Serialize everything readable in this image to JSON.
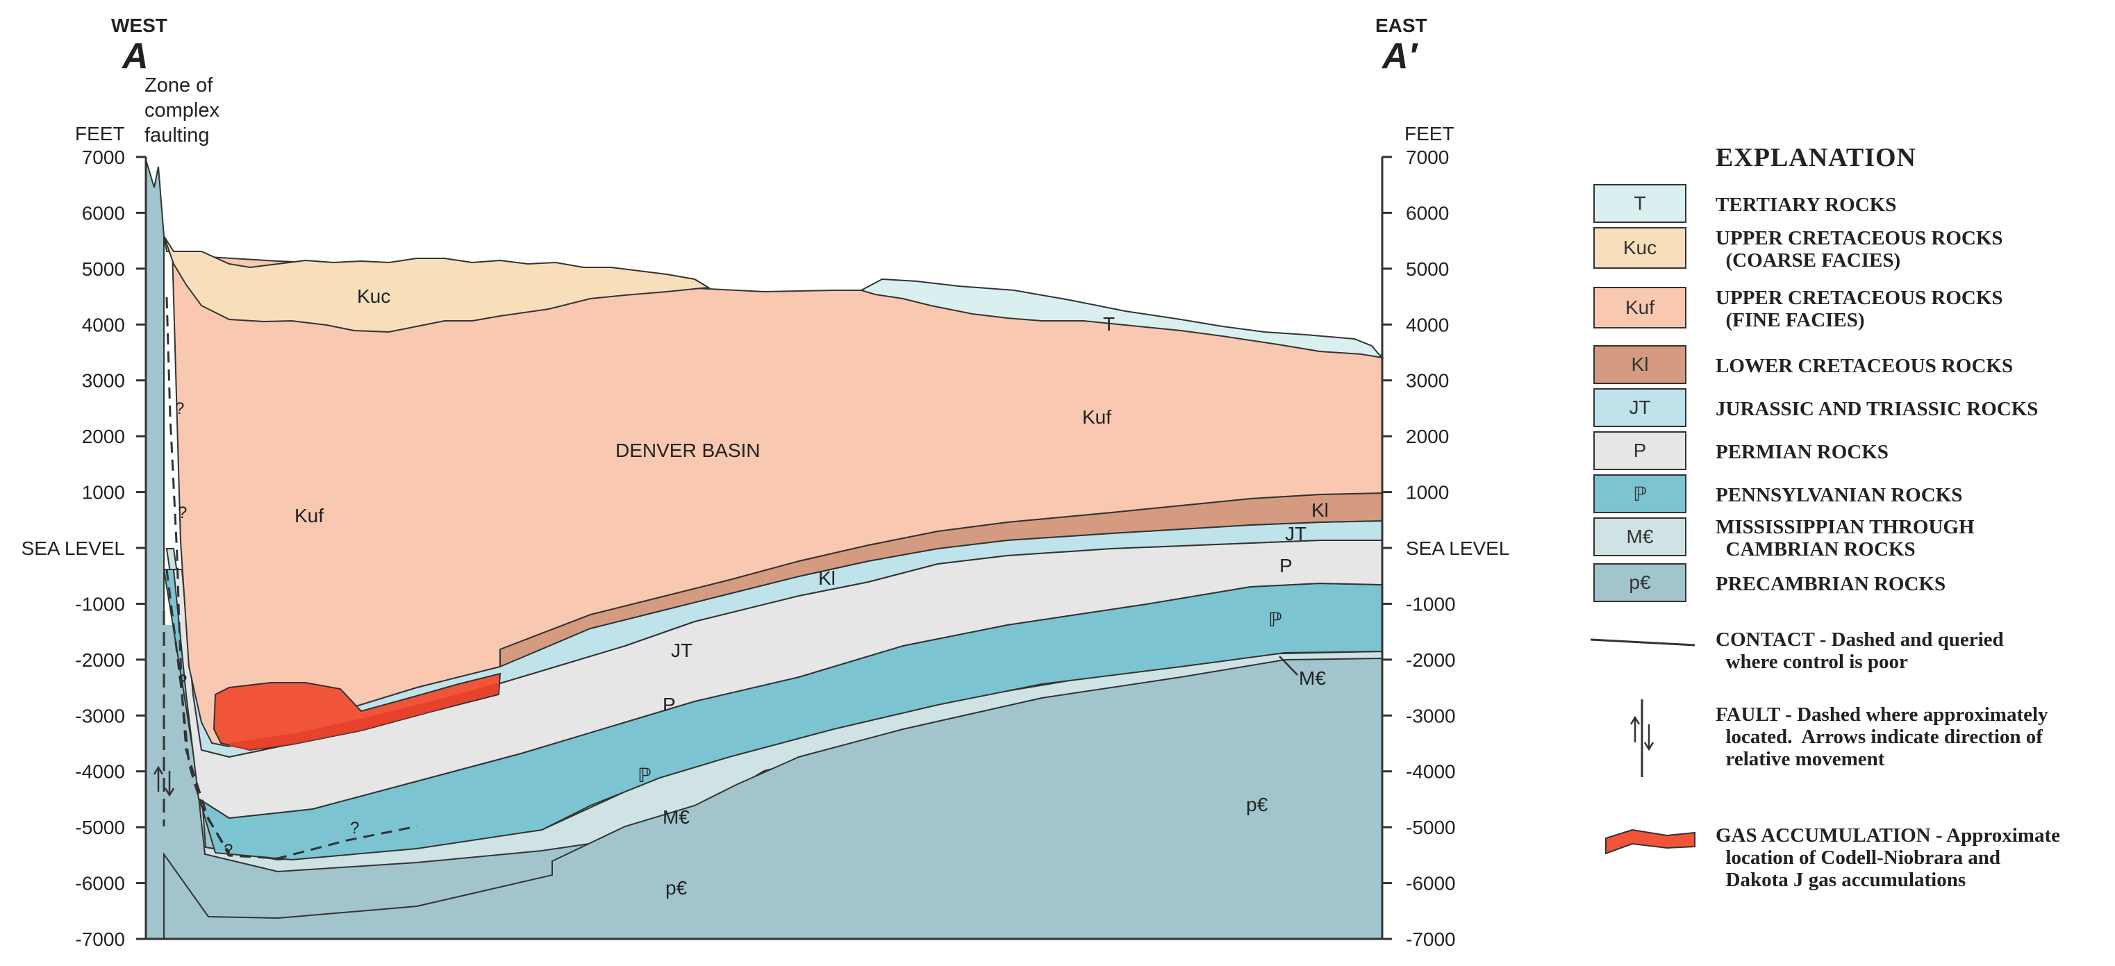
{
  "section": {
    "west_dir": "WEST",
    "west_label": "A",
    "east_dir": "EAST",
    "east_label": "A′",
    "fault_zone_label": [
      "Zone of",
      "complex",
      "faulting"
    ],
    "axis_unit": "FEET",
    "elevation_ticks": [
      "7000",
      "6000",
      "5000",
      "4000",
      "3000",
      "2000",
      "1000",
      "SEA LEVEL",
      "-1000",
      "-2000",
      "-3000",
      "-4000",
      "-5000",
      "-6000",
      "-7000"
    ]
  },
  "unit_labels": [
    {
      "name": "kuc",
      "text": "Kuc"
    },
    {
      "name": "denver-basin",
      "text": "DENVER BASIN"
    },
    {
      "name": "kuf-east",
      "text": "Kuf"
    },
    {
      "name": "kuf-west",
      "text": "Kuf"
    },
    {
      "name": "t",
      "text": "T"
    },
    {
      "name": "kl-east",
      "text": "Kl"
    },
    {
      "name": "jt-east",
      "text": "JT"
    },
    {
      "name": "p-east",
      "text": "P"
    },
    {
      "name": "penn-east",
      "text": "ℙ"
    },
    {
      "name": "mc-east",
      "text": "M€"
    },
    {
      "name": "pc-east",
      "text": "p€"
    },
    {
      "name": "kl-mid",
      "text": "Kl"
    },
    {
      "name": "jt-mid",
      "text": "JT"
    },
    {
      "name": "p-mid",
      "text": "P"
    },
    {
      "name": "penn-mid",
      "text": "ℙ"
    },
    {
      "name": "mc-mid",
      "text": "M€"
    },
    {
      "name": "pc-mid",
      "text": "p€"
    },
    {
      "name": "query-1",
      "text": "?"
    },
    {
      "name": "query-2",
      "text": "?"
    },
    {
      "name": "query-3",
      "text": "?"
    },
    {
      "name": "query-4",
      "text": "?"
    },
    {
      "name": "query-5",
      "text": "?"
    }
  ],
  "legend": {
    "title": "EXPLANATION",
    "units": [
      {
        "symbol": "T",
        "lines": [
          "TERTIARY ROCKS"
        ],
        "color": "#daf0f0"
      },
      {
        "symbol": "Kuc",
        "lines": [
          "UPPER CRETACEOUS ROCKS",
          "  (COARSE FACIES)"
        ],
        "color": "#f7dfbc"
      },
      {
        "symbol": "Kuf",
        "lines": [
          "UPPER CRETACEOUS ROCKS",
          "  (FINE FACIES)"
        ],
        "color": "#f8c8b0"
      },
      {
        "symbol": "Kl",
        "lines": [
          "LOWER CRETACEOUS ROCKS"
        ],
        "color": "#d49b80"
      },
      {
        "symbol": "JT",
        "lines": [
          "JURASSIC AND TRIASSIC ROCKS"
        ],
        "color": "#bfe3ea"
      },
      {
        "symbol": "P",
        "lines": [
          "PERMIAN ROCKS"
        ],
        "color": "#e6e6e6"
      },
      {
        "symbol": "ℙ",
        "lines": [
          "PENNSYLVANIAN ROCKS"
        ],
        "color": "#7cc4d2"
      },
      {
        "symbol": "M€",
        "lines": [
          "MISSISSIPPIAN THROUGH",
          "  CAMBRIAN ROCKS"
        ],
        "color": "#cfe2e4"
      },
      {
        "symbol": "p€",
        "lines": [
          "PRECAMBRIAN ROCKS"
        ],
        "color": "#a2c5cd"
      }
    ],
    "contact": [
      "CONTACT - Dashed and queried",
      "  where control is poor"
    ],
    "fault": [
      "FAULT - Dashed where approximately",
      "  located.  Arrows indicate direction of",
      "  relative movement"
    ],
    "gas": [
      "GAS ACCUMULATION - Approximate",
      "  location of Codell-Niobrara and",
      "  Dakota J gas accumulations"
    ],
    "gas_color": "#f0553a"
  }
}
